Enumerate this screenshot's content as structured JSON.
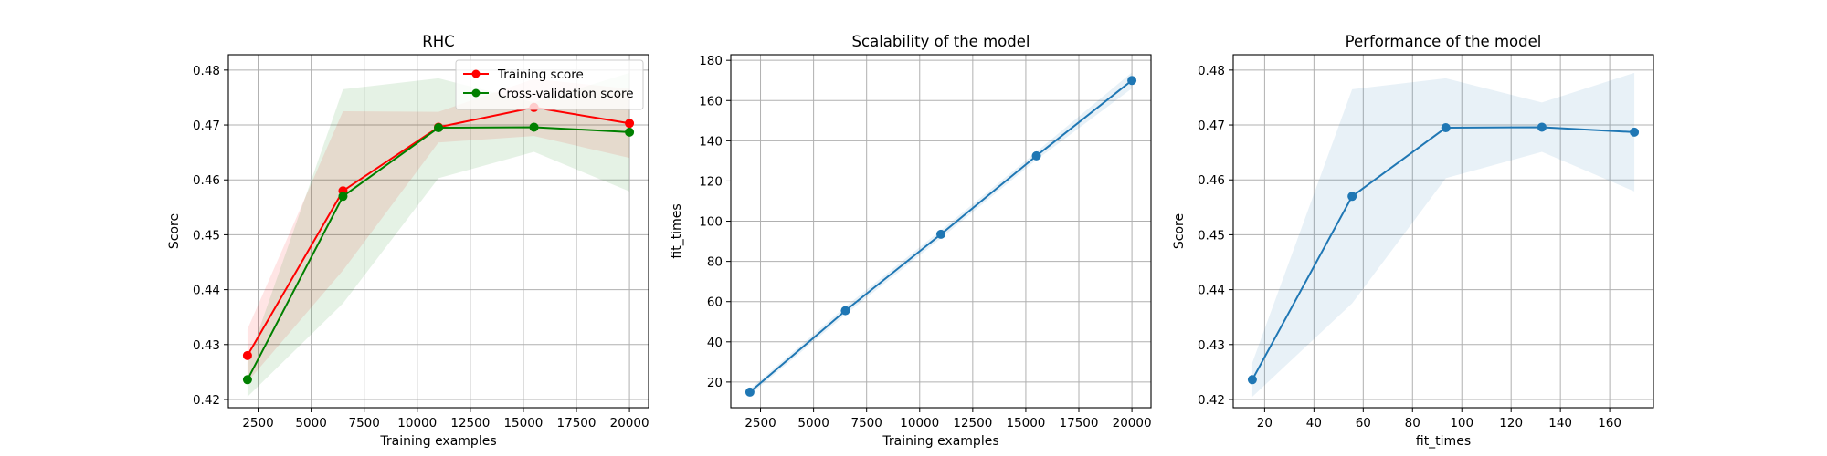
{
  "chart_data": [
    {
      "type": "line",
      "title": "RHC",
      "xlabel": "Training examples",
      "ylabel": "Score",
      "xlim": [
        1100,
        20900
      ],
      "ylim": [
        0.4185,
        0.4828
      ],
      "xticks": [
        2500,
        5000,
        7500,
        10000,
        12500,
        15000,
        17500,
        20000
      ],
      "xtick_labels": [
        "2500",
        "5000",
        "7500",
        "10000",
        "12500",
        "15000",
        "17500",
        "20000"
      ],
      "yticks": [
        0.42,
        0.43,
        0.44,
        0.45,
        0.46,
        0.47,
        0.48
      ],
      "ytick_labels": [
        "0.42",
        "0.43",
        "0.44",
        "0.45",
        "0.46",
        "0.47",
        "0.48"
      ],
      "grid": true,
      "legend": "top-right",
      "x": [
        2000,
        6500,
        11000,
        15500,
        20000
      ],
      "series": [
        {
          "name": "Training score",
          "color": "#ff0000",
          "marker": "circle",
          "values": [
            0.428,
            0.458,
            0.4696,
            0.4732,
            0.4703
          ],
          "band_lower": [
            0.4232,
            0.4435,
            0.4668,
            0.468,
            0.464
          ],
          "band_upper": [
            0.4328,
            0.4725,
            0.4724,
            0.4784,
            0.4766
          ]
        },
        {
          "name": "Cross-validation score",
          "color": "#008000",
          "marker": "circle",
          "values": [
            0.4236,
            0.457,
            0.4695,
            0.4696,
            0.4687
          ],
          "band_lower": [
            0.4205,
            0.4375,
            0.4603,
            0.4651,
            0.4579
          ],
          "band_upper": [
            0.4267,
            0.4765,
            0.4785,
            0.4741,
            0.4795
          ]
        }
      ]
    },
    {
      "type": "line",
      "title": "Scalability of the model",
      "xlabel": "Training examples",
      "ylabel": "fit_times",
      "xlim": [
        1100,
        20900
      ],
      "ylim": [
        7.25,
        182.8
      ],
      "xticks": [
        2500,
        5000,
        7500,
        10000,
        12500,
        15000,
        17500,
        20000
      ],
      "xtick_labels": [
        "2500",
        "5000",
        "7500",
        "10000",
        "12500",
        "15000",
        "17500",
        "20000"
      ],
      "yticks": [
        20,
        40,
        60,
        80,
        100,
        120,
        140,
        160,
        180
      ],
      "ytick_labels": [
        "20",
        "40",
        "60",
        "80",
        "100",
        "120",
        "140",
        "160",
        "180"
      ],
      "grid": true,
      "x": [
        2000,
        6500,
        11000,
        15500,
        20000
      ],
      "series": [
        {
          "color": "#1f77b4",
          "marker": "circle",
          "values": [
            15,
            55.5,
            93.5,
            132.5,
            170
          ],
          "band_lower": [
            13.5,
            53.5,
            91.5,
            130.5,
            166
          ],
          "band_upper": [
            16.5,
            57.5,
            95.5,
            134.5,
            174
          ]
        }
      ]
    },
    {
      "type": "line",
      "title": "Performance of the model",
      "xlabel": "fit_times",
      "ylabel": "Score",
      "xlim": [
        7.25,
        177.75
      ],
      "ylim": [
        0.4185,
        0.4828
      ],
      "xticks": [
        20,
        40,
        60,
        80,
        100,
        120,
        140,
        160
      ],
      "xtick_labels": [
        "20",
        "40",
        "60",
        "80",
        "100",
        "120",
        "140",
        "160"
      ],
      "yticks": [
        0.42,
        0.43,
        0.44,
        0.45,
        0.46,
        0.47,
        0.48
      ],
      "ytick_labels": [
        "0.42",
        "0.43",
        "0.44",
        "0.45",
        "0.46",
        "0.47",
        "0.48"
      ],
      "grid": true,
      "x": [
        15,
        55.5,
        93.5,
        132.5,
        170
      ],
      "series": [
        {
          "color": "#1f77b4",
          "marker": "circle",
          "values": [
            0.4236,
            0.457,
            0.4695,
            0.4696,
            0.4687
          ],
          "band_lower": [
            0.4205,
            0.4375,
            0.4603,
            0.4651,
            0.4579
          ],
          "band_upper": [
            0.4267,
            0.4765,
            0.4785,
            0.4741,
            0.4795
          ]
        }
      ]
    }
  ]
}
